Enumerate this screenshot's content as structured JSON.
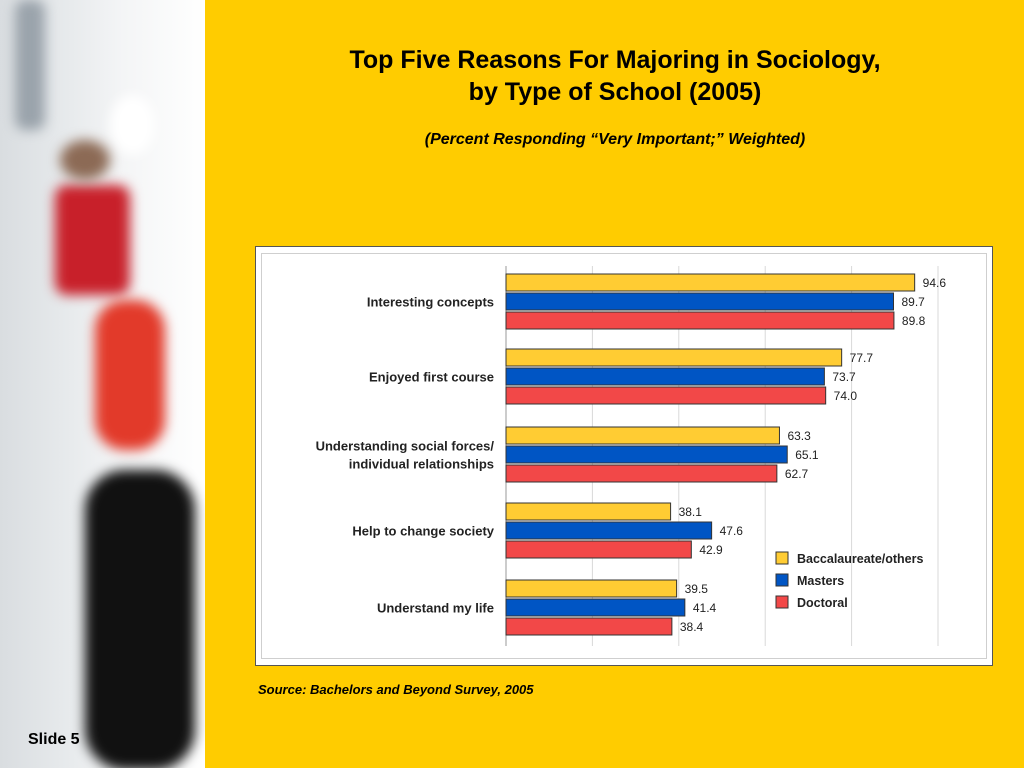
{
  "slide": {
    "label": "Slide 5"
  },
  "header": {
    "title_line1": "Top Five Reasons For Majoring in Sociology,",
    "title_line2": "by Type of School (2005)",
    "subtitle": "(Percent Responding “Very Important;” Weighted)"
  },
  "source": "Source: Bachelors and Beyond Survey, 2005",
  "colors": {
    "background": "#ffcc00",
    "baccalaureate": "#ffcc33",
    "masters": "#0055c4",
    "doctoral": "#f24848"
  },
  "chart_data": {
    "type": "bar",
    "orientation": "horizontal",
    "categories": [
      [
        "Interesting concepts"
      ],
      [
        "Enjoyed first course"
      ],
      [
        "Understanding social forces/",
        "individual relationships"
      ],
      [
        "Help to change society"
      ],
      [
        "Understand my life"
      ]
    ],
    "series": [
      {
        "name": "Baccalaureate/others",
        "color": "#ffcc33",
        "values": [
          94.6,
          77.7,
          63.3,
          38.1,
          39.5
        ],
        "labels": [
          "94.6",
          "77.7",
          "63.3",
          "38.1",
          "39.5"
        ]
      },
      {
        "name": "Masters",
        "color": "#0055c4",
        "values": [
          89.7,
          73.7,
          65.1,
          47.6,
          41.4
        ],
        "labels": [
          "89.7",
          "73.7",
          "65.1",
          "47.6",
          "41.4"
        ]
      },
      {
        "name": "Doctoral",
        "color": "#f24848",
        "values": [
          89.8,
          74.0,
          62.7,
          42.9,
          38.4
        ],
        "labels": [
          "89.8",
          "74.0",
          "62.7",
          "42.9",
          "38.4"
        ]
      }
    ],
    "xlim": [
      0,
      100
    ],
    "grid": true,
    "legend_position": "bottom-right"
  }
}
